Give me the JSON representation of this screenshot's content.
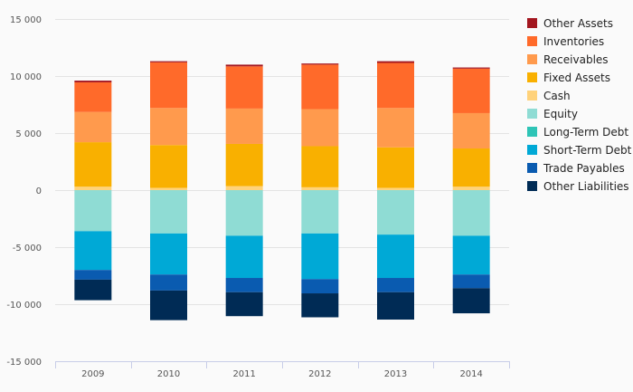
{
  "chart_data": {
    "type": "bar",
    "stacked": true,
    "categories": [
      "2009",
      "2010",
      "2011",
      "2012",
      "2013",
      "2014"
    ],
    "y_ticks": [
      15000,
      10000,
      5000,
      0,
      -5000,
      -10000,
      -15000
    ],
    "y_tick_labels": [
      "15 000",
      "10 000",
      "5 000",
      "0",
      "-5 000",
      "-10 000",
      "-15 000"
    ],
    "ylim": [
      -15000,
      15000
    ],
    "grid": true,
    "legend_position": "right",
    "series": [
      {
        "name": "Cash",
        "color": "#ffd27a",
        "values": [
          300,
          200,
          350,
          250,
          200,
          300
        ]
      },
      {
        "name": "Fixed Assets",
        "color": "#f9b000",
        "values": [
          3900,
          3750,
          3700,
          3600,
          3550,
          3350
        ]
      },
      {
        "name": "Receivables",
        "color": "#ff9a4d",
        "values": [
          2650,
          3250,
          3100,
          3250,
          3450,
          3100
        ]
      },
      {
        "name": "Inventories",
        "color": "#ff6a2a",
        "values": [
          2600,
          4000,
          3700,
          3900,
          3950,
          3900
        ]
      },
      {
        "name": "Other Assets",
        "color": "#a3161f",
        "values": [
          150,
          100,
          150,
          100,
          150,
          100
        ]
      },
      {
        "name": "Equity",
        "color": "#8fdcd4",
        "values": [
          -3600,
          -3800,
          -4000,
          -3800,
          -3900,
          -4000
        ]
      },
      {
        "name": "Long-Term Debt",
        "color": "#2ec4b6",
        "values": [
          0,
          0,
          0,
          0,
          0,
          0
        ]
      },
      {
        "name": "Short-Term Debt",
        "color": "#00a9d6",
        "values": [
          -3400,
          -3600,
          -3700,
          -4000,
          -3800,
          -3400
        ]
      },
      {
        "name": "Trade Payables",
        "color": "#0a5bb0",
        "values": [
          -850,
          -1400,
          -1250,
          -1250,
          -1250,
          -1200
        ]
      },
      {
        "name": "Other Liabilities",
        "color": "#002b55",
        "values": [
          -1800,
          -2600,
          -2100,
          -2100,
          -2400,
          -2200
        ]
      }
    ],
    "legend_order": [
      "Other Assets",
      "Inventories",
      "Receivables",
      "Fixed Assets",
      "Cash",
      "Equity",
      "Long-Term Debt",
      "Short-Term Debt",
      "Trade Payables",
      "Other Liabilities"
    ]
  }
}
